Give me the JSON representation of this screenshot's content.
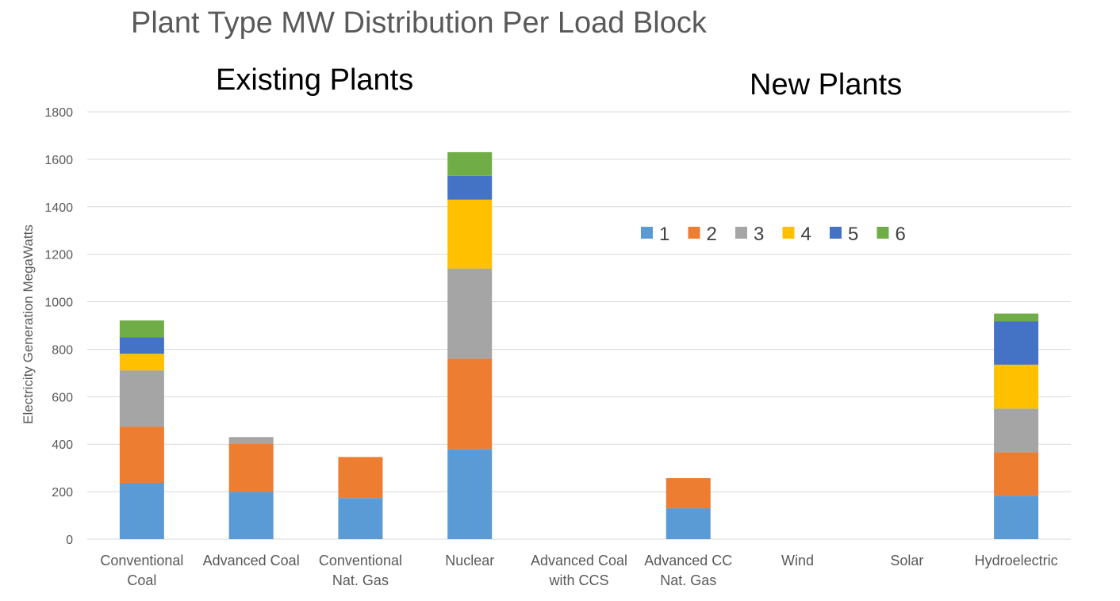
{
  "chart_data": {
    "type": "bar",
    "stacked": true,
    "title": "Plant Type MW Distribution Per Load Block",
    "annotations": [
      "Existing Plants",
      "New Plants"
    ],
    "xlabel": "",
    "ylabel": "Electricity Generation MegaWatts",
    "ylim": [
      0,
      1800
    ],
    "yticks": [
      0,
      200,
      400,
      600,
      800,
      1000,
      1200,
      1400,
      1600,
      1800
    ],
    "grid": true,
    "legend_position": "top-right",
    "categories": [
      [
        "Conventional",
        "Coal"
      ],
      [
        "Advanced Coal"
      ],
      [
        "Conventional",
        "Nat. Gas"
      ],
      [
        "Nuclear"
      ],
      [
        "Advanced Coal",
        "with CCS"
      ],
      [
        "Advanced CC",
        "Nat. Gas"
      ],
      [
        "Wind"
      ],
      [
        "Solar"
      ],
      [
        "Hydroelectric"
      ]
    ],
    "series": [
      {
        "name": "1",
        "color": "#5B9BD5",
        "values": [
          237,
          200,
          173,
          380,
          0,
          130,
          0,
          0,
          183
        ]
      },
      {
        "name": "2",
        "color": "#ED7D31",
        "values": [
          237,
          203,
          173,
          380,
          0,
          127,
          0,
          0,
          183
        ]
      },
      {
        "name": "3",
        "color": "#A5A5A5",
        "values": [
          237,
          27,
          0,
          380,
          0,
          0,
          0,
          0,
          184
        ]
      },
      {
        "name": "4",
        "color": "#FFC000",
        "values": [
          70,
          0,
          0,
          290,
          0,
          0,
          0,
          0,
          185
        ]
      },
      {
        "name": "5",
        "color": "#4472C4",
        "values": [
          70,
          0,
          0,
          100,
          0,
          0,
          0,
          0,
          183
        ]
      },
      {
        "name": "6",
        "color": "#70AD47",
        "values": [
          70,
          0,
          0,
          100,
          0,
          0,
          0,
          0,
          32
        ]
      }
    ]
  }
}
